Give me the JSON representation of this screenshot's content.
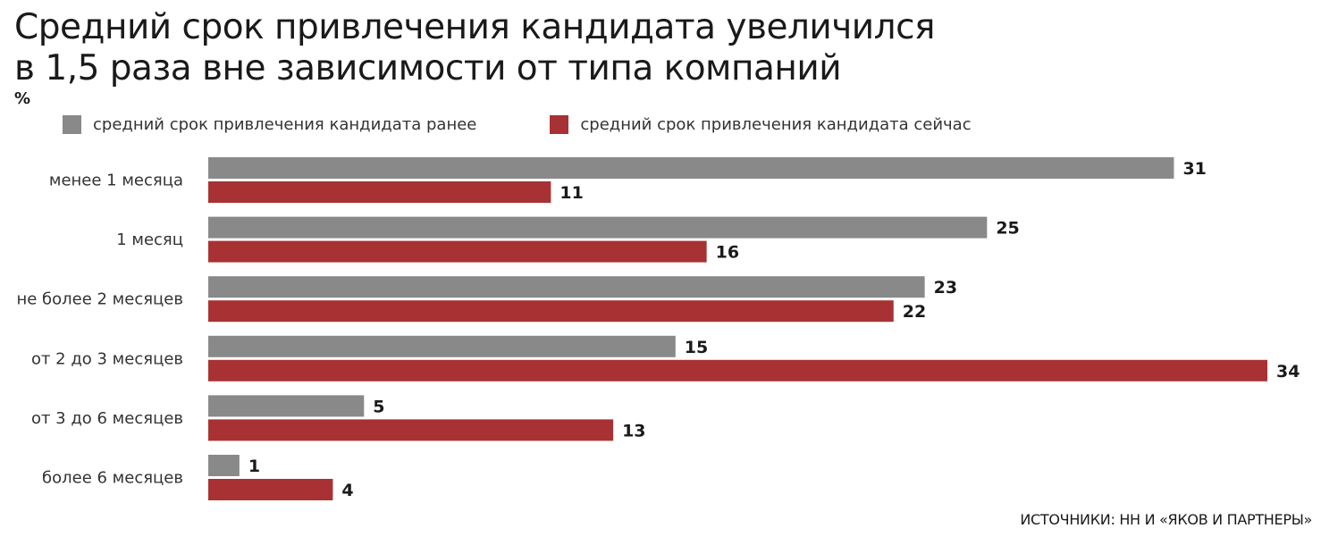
{
  "header": {
    "title_line1": "Средний срок привлечения кандидата увеличился",
    "title_line2": "в 1,5 раза вне зависимости от типа компаний",
    "unit": "%"
  },
  "legend": [
    {
      "label": "средний срок привлечения кандидата ранее",
      "color": "#898989"
    },
    {
      "label": "средний срок привлечения кандидата сейчас",
      "color": "#a83233"
    }
  ],
  "source": "ИСТОЧНИКИ: НН И «ЯКОВ И ПАРТНЕРЫ»",
  "chart_data": {
    "type": "bar",
    "orientation": "horizontal",
    "title": "Средний срок привлечения кандидата увеличился в 1,5 раза вне зависимости от типа компаний",
    "unit": "%",
    "categories": [
      "менее 1 месяца",
      "1 месяц",
      "не более 2 месяцев",
      "от 2 до 3 месяцев",
      "от 3 до 6 месяцев",
      "более 6 месяцев"
    ],
    "series": [
      {
        "name": "средний срок привлечения кандидата ранее",
        "color": "#898989",
        "values": [
          31,
          25,
          23,
          15,
          5,
          1
        ]
      },
      {
        "name": "средний срок привлечения кандидата сейчас",
        "color": "#a83233",
        "values": [
          11,
          16,
          22,
          34,
          13,
          4
        ]
      }
    ],
    "xlim": [
      0,
      34
    ],
    "grid": false,
    "legend": "top"
  }
}
